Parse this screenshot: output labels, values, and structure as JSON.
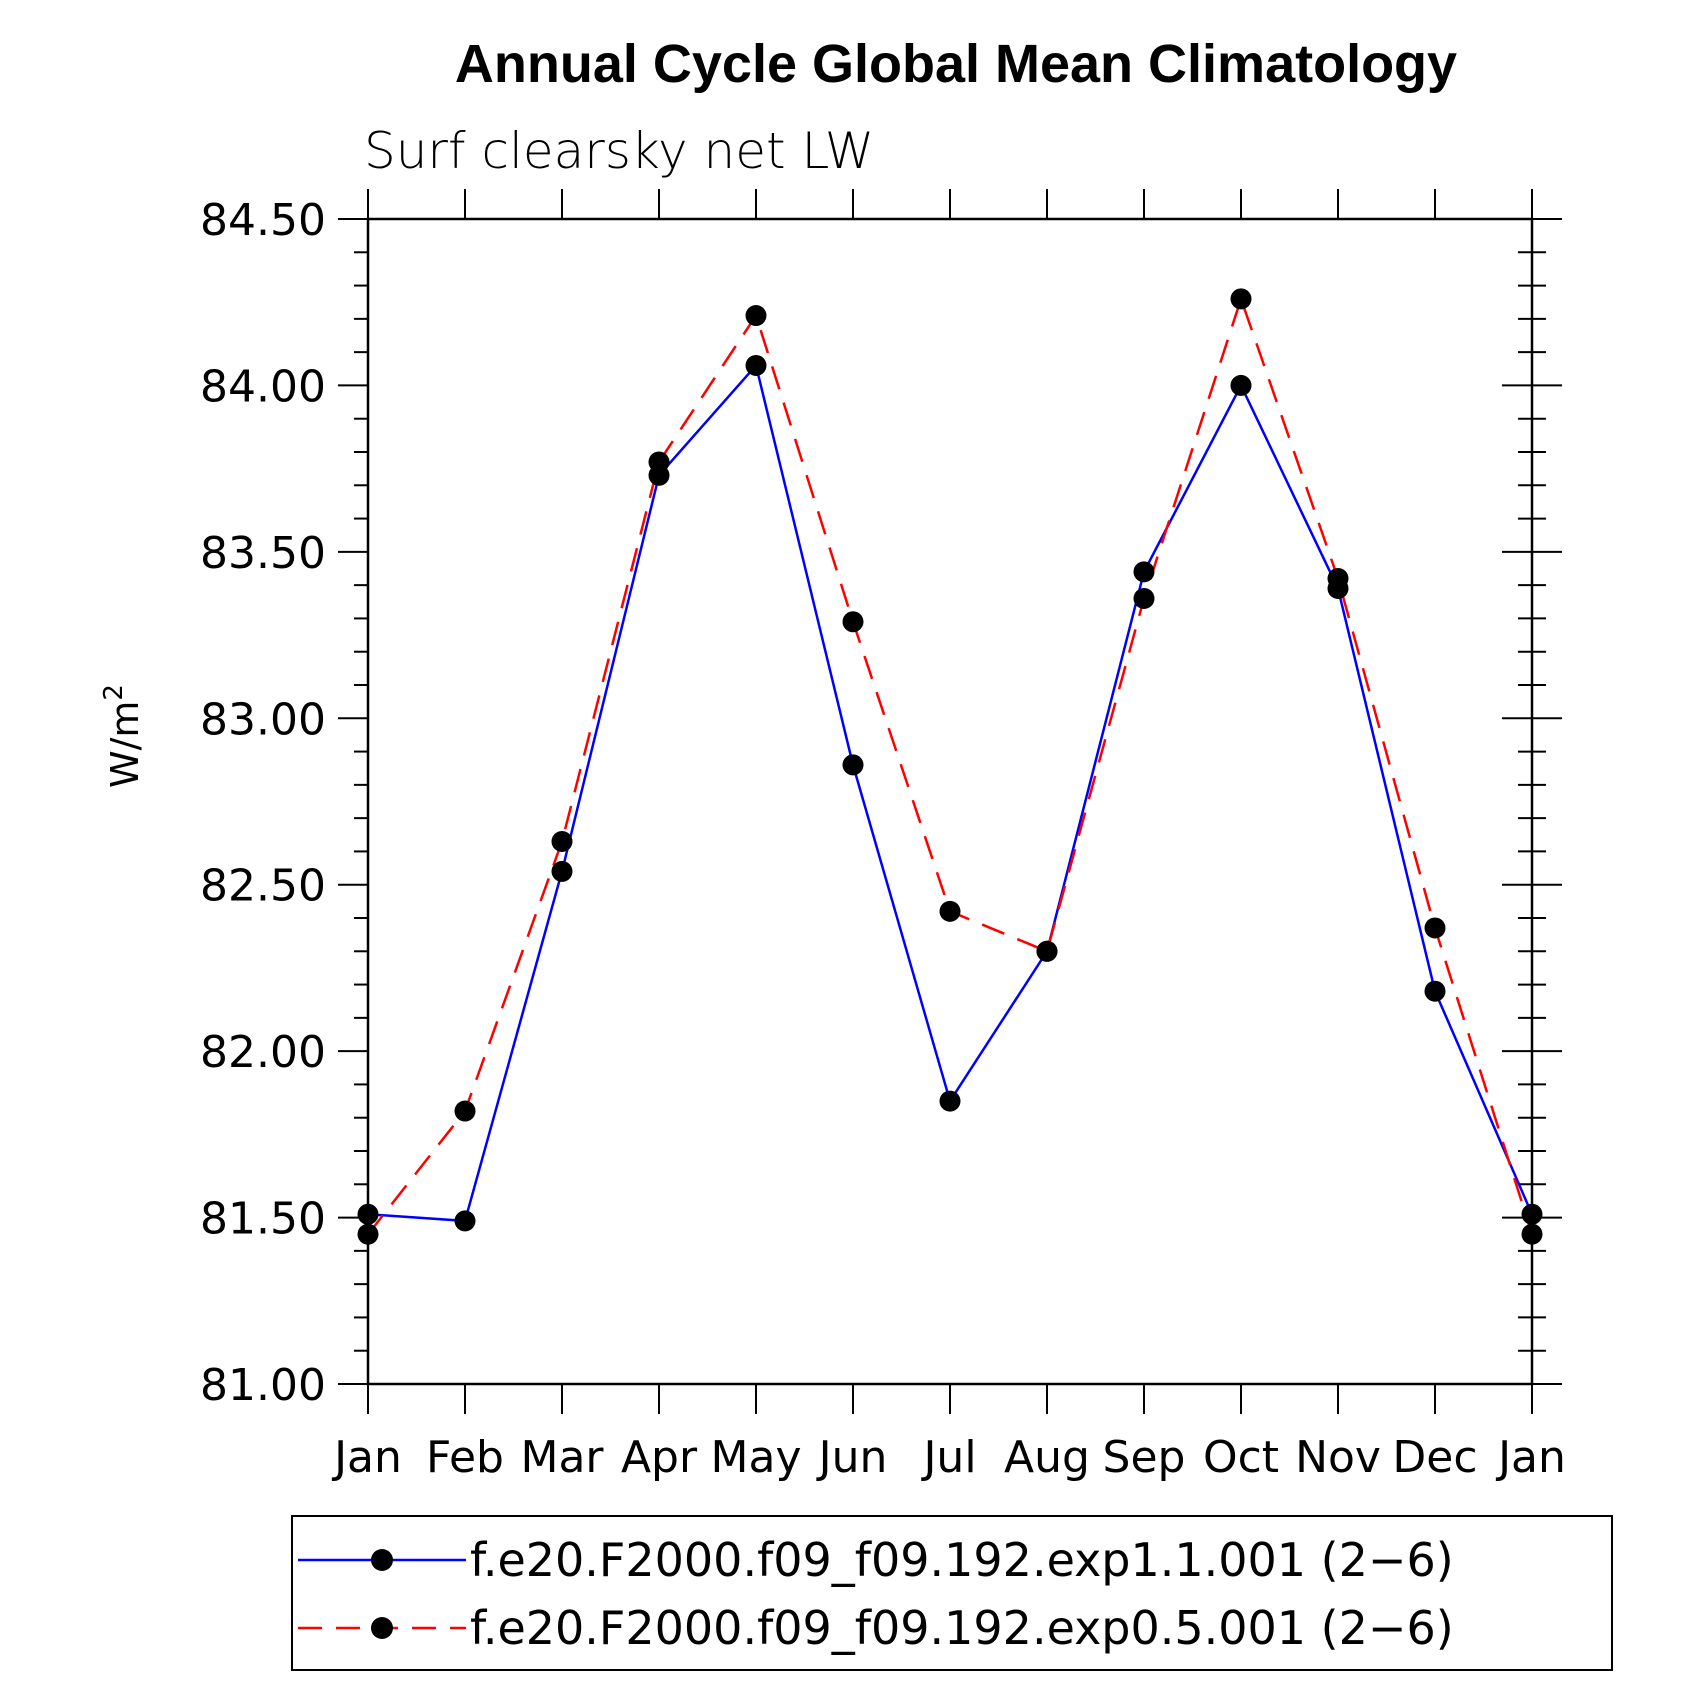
{
  "chart_data": {
    "type": "line",
    "title": "Annual Cycle Global Mean Climatology",
    "subtitle": "Surf clearsky net LW",
    "xlabel": "",
    "ylabel": "W/m",
    "ylabel_superscript": "2",
    "categories": [
      "Jan",
      "Feb",
      "Mar",
      "Apr",
      "May",
      "Jun",
      "Jul",
      "Aug",
      "Sep",
      "Oct",
      "Nov",
      "Dec",
      "Jan"
    ],
    "ylim": [
      81.0,
      84.5
    ],
    "y_ticks": [
      "81.00",
      "81.50",
      "82.00",
      "82.50",
      "83.00",
      "83.50",
      "84.00",
      "84.50"
    ],
    "y_tick_values": [
      81.0,
      81.5,
      82.0,
      82.5,
      83.0,
      83.5,
      84.0,
      84.5
    ],
    "grid": false,
    "legend_position": "bottom",
    "series": [
      {
        "name": "f.e20.F2000.f09_f09.192.exp1.1.001 (2−6)",
        "color": "#0000ff",
        "dash": "solid",
        "marker": "filled-circle",
        "values": [
          81.51,
          81.49,
          82.54,
          83.73,
          84.06,
          82.86,
          81.85,
          82.3,
          83.44,
          84.0,
          83.39,
          82.18,
          81.51
        ]
      },
      {
        "name": "f.e20.F2000.f09_f09.192.exp0.5.001 (2−6)",
        "color": "#ff0000",
        "dash": "dashed",
        "marker": "filled-circle",
        "values": [
          81.45,
          81.82,
          82.63,
          83.77,
          84.21,
          83.29,
          82.42,
          82.3,
          83.36,
          84.26,
          83.42,
          82.37,
          81.45
        ]
      }
    ]
  }
}
